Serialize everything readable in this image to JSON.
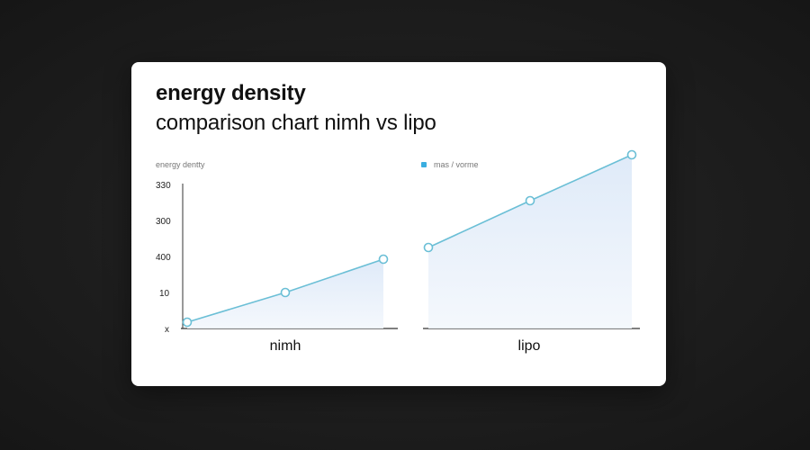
{
  "card": {
    "title_line1": "energy density",
    "title_line2": "comparison chart nimh vs lipo"
  },
  "chart_data": {
    "type": "line",
    "ylabel": "energy dentty",
    "yticks": [
      "330",
      "300",
      "400",
      "10",
      "x"
    ],
    "legend": {
      "label": "mas / vorme",
      "color": "#3aaee0",
      "position": "top-center"
    },
    "grid": false,
    "line_color": "#6bbfd6",
    "fill_color": "#e6f0fa",
    "panels": [
      {
        "category": "nimh",
        "values": [
          7,
          40,
          77
        ]
      },
      {
        "category": "lipo",
        "values": [
          90,
          142,
          193
        ]
      }
    ],
    "ylim": [
      0,
      200
    ]
  }
}
